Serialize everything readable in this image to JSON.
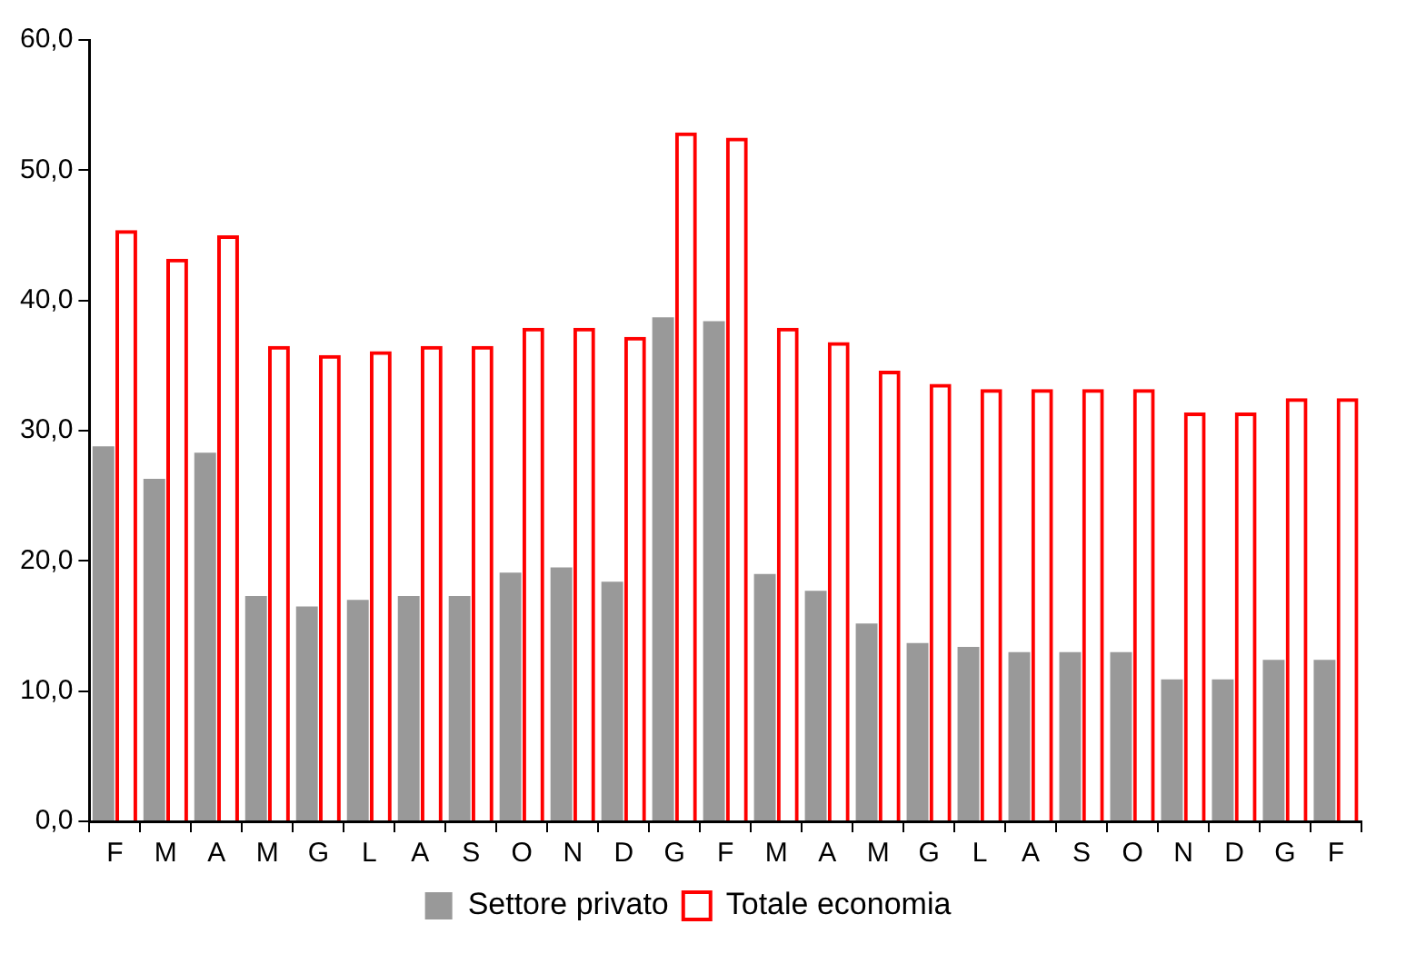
{
  "chart_data": {
    "type": "bar",
    "categories": [
      "F",
      "M",
      "A",
      "M",
      "G",
      "L",
      "A",
      "S",
      "O",
      "N",
      "D",
      "G",
      "F",
      "M",
      "A",
      "M",
      "G",
      "L",
      "A",
      "S",
      "O",
      "N",
      "D",
      "G",
      "F"
    ],
    "series": [
      {
        "name": "Settore privato",
        "color": "#999999",
        "values": [
          28.8,
          26.3,
          28.3,
          17.3,
          16.5,
          17.0,
          17.3,
          17.3,
          19.1,
          19.5,
          18.4,
          38.7,
          38.4,
          19.0,
          17.7,
          15.2,
          13.7,
          13.4,
          13.0,
          13.0,
          13.0,
          10.9,
          10.9,
          12.4,
          12.4
        ]
      },
      {
        "name": "Totale economia",
        "color": "#ff0000",
        "values": [
          45.4,
          43.2,
          45.0,
          36.5,
          35.8,
          36.1,
          36.5,
          36.5,
          37.9,
          37.9,
          37.2,
          52.9,
          52.5,
          37.9,
          36.8,
          34.6,
          33.6,
          33.2,
          33.2,
          33.2,
          33.2,
          31.4,
          31.4,
          32.5,
          32.5
        ]
      }
    ],
    "ylim": [
      0,
      60
    ],
    "yticks": [
      {
        "value": 0,
        "label": "0,0"
      },
      {
        "value": 10,
        "label": "10,0"
      },
      {
        "value": 20,
        "label": "20,0"
      },
      {
        "value": 30,
        "label": "30,0"
      },
      {
        "value": 40,
        "label": "40,0"
      },
      {
        "value": 50,
        "label": "50,0"
      },
      {
        "value": 60,
        "label": "60,0"
      }
    ],
    "grid": false,
    "legend": "bottom"
  }
}
